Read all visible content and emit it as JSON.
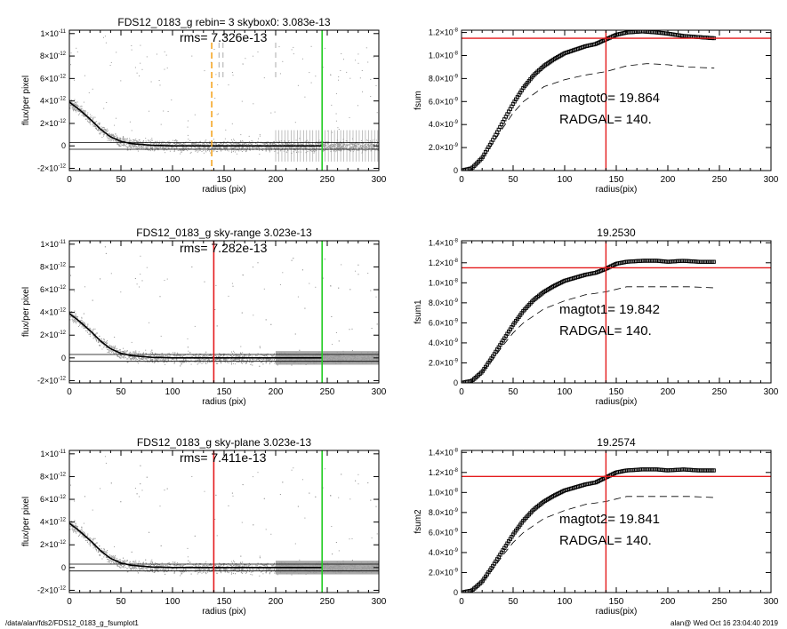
{
  "footer": {
    "path": "/data/alan/fds2/FDS12_0183_g_fsumplot1",
    "stamp": "alan@  Wed Oct 16 23:04:40 2019"
  },
  "colors": {
    "axis": "#000000",
    "points": "#9a9a9a",
    "red": "#e41a1c",
    "green": "#22cc22",
    "orange": "#f5a623"
  },
  "chart_data": [
    {
      "id": "profile-1",
      "type": "scatter",
      "title": "FDS12_0183_g rebin= 3    skybox0:  3.083e-13",
      "rms_label": "rms= 7.326e-13",
      "xlabel": "radius (pix)",
      "ylabel": "flux/per pixel",
      "xlim": [
        0,
        300
      ],
      "ylim": [
        -2.2e-12,
        1.03e-11
      ],
      "xticks": [
        "0",
        "50",
        "100",
        "150",
        "200",
        "250",
        "300"
      ],
      "yticks": [
        {
          "v": 1e-11,
          "m": "1×10",
          "e": "-11"
        },
        {
          "v": 8e-12,
          "m": "8×10",
          "e": "-12"
        },
        {
          "v": 6e-12,
          "m": "6×10",
          "e": "-12"
        },
        {
          "v": 4e-12,
          "m": "4×10",
          "e": "-12"
        },
        {
          "v": 2e-12,
          "m": "2×10",
          "e": "-12"
        },
        {
          "v": 0,
          "m": "0",
          "e": ""
        },
        {
          "v": -2e-12,
          "m": "-2×10",
          "e": "-12"
        }
      ],
      "profile": [
        [
          0,
          3.9e-12
        ],
        [
          10,
          3.2e-12
        ],
        [
          20,
          2.4e-12
        ],
        [
          30,
          1.5e-12
        ],
        [
          40,
          8e-13
        ],
        [
          50,
          4e-13
        ],
        [
          60,
          2e-13
        ],
        [
          80,
          5e-14
        ],
        [
          100,
          0
        ],
        [
          150,
          0
        ],
        [
          200,
          0
        ],
        [
          245,
          0
        ]
      ],
      "sky_lines": [
        3e-13,
        -3e-13
      ],
      "green_x": 245,
      "red_x": null,
      "orange_dashed_x": [
        138
      ],
      "gray_dashed_x": [
        145,
        149,
        200
      ],
      "noise_style": "open"
    },
    {
      "id": "cog-1",
      "type": "line",
      "title": "",
      "xlabel": "radius(pix)",
      "ylabel": "fsum",
      "xlim": [
        0,
        300
      ],
      "ylim": [
        0,
        1.22e-08
      ],
      "xticks": [
        "0",
        "50",
        "100",
        "150",
        "200",
        "250",
        "300"
      ],
      "yticks": [
        {
          "v": 1.2e-08,
          "m": "1.2×10",
          "e": "-8"
        },
        {
          "v": 1e-08,
          "m": "1.0×10",
          "e": "-8"
        },
        {
          "v": 8e-09,
          "m": "8.0×10",
          "e": "-9"
        },
        {
          "v": 6e-09,
          "m": "6.0×10",
          "e": "-9"
        },
        {
          "v": 4e-09,
          "m": "4.0×10",
          "e": "-9"
        },
        {
          "v": 2e-09,
          "m": "2.0×10",
          "e": "-9"
        },
        {
          "v": 0,
          "m": "0",
          "e": ""
        }
      ],
      "cog": [
        [
          0,
          0
        ],
        [
          10,
          2e-10
        ],
        [
          20,
          1.1e-09
        ],
        [
          30,
          2.6e-09
        ],
        [
          40,
          4.2e-09
        ],
        [
          50,
          5.8e-09
        ],
        [
          60,
          7.2e-09
        ],
        [
          70,
          8.3e-09
        ],
        [
          80,
          9.1e-09
        ],
        [
          90,
          9.7e-09
        ],
        [
          100,
          1.02e-08
        ],
        [
          110,
          1.05e-08
        ],
        [
          120,
          1.08e-08
        ],
        [
          130,
          1.1e-08
        ],
        [
          140,
          1.14e-08
        ],
        [
          150,
          1.18e-08
        ],
        [
          160,
          1.2e-08
        ],
        [
          175,
          1.21e-08
        ],
        [
          190,
          1.2e-08
        ],
        [
          200,
          1.19e-08
        ],
        [
          215,
          1.17e-08
        ],
        [
          230,
          1.16e-08
        ],
        [
          245,
          1.15e-08
        ]
      ],
      "dashed": [
        [
          20,
          1.1e-09
        ],
        [
          30,
          2.3e-09
        ],
        [
          40,
          3.7e-09
        ],
        [
          50,
          5e-09
        ],
        [
          60,
          6e-09
        ],
        [
          80,
          7.3e-09
        ],
        [
          100,
          7.9e-09
        ],
        [
          120,
          8.3e-09
        ],
        [
          140,
          8.6e-09
        ],
        [
          160,
          9.1e-09
        ],
        [
          180,
          9.3e-09
        ],
        [
          200,
          9.2e-09
        ],
        [
          220,
          9e-09
        ],
        [
          245,
          8.9e-09
        ]
      ],
      "hline": 1.15e-08,
      "vline": 140,
      "annot1": "magtot0=  19.864",
      "annot2": "RADGAL=    140."
    },
    {
      "id": "profile-2",
      "type": "scatter",
      "title": "FDS12_0183_g sky-range  3.023e-13",
      "rms_label": "rms= 7.282e-13",
      "xlabel": "radius (pix)",
      "ylabel": "flux/per pixel",
      "xlim": [
        0,
        300
      ],
      "ylim": [
        -2.2e-12,
        1.03e-11
      ],
      "xticks": [
        "0",
        "50",
        "100",
        "150",
        "200",
        "250",
        "300"
      ],
      "yticks": [
        {
          "v": 1e-11,
          "m": "1×10",
          "e": "-11"
        },
        {
          "v": 8e-12,
          "m": "8×10",
          "e": "-12"
        },
        {
          "v": 6e-12,
          "m": "6×10",
          "e": "-12"
        },
        {
          "v": 4e-12,
          "m": "4×10",
          "e": "-12"
        },
        {
          "v": 2e-12,
          "m": "2×10",
          "e": "-12"
        },
        {
          "v": 0,
          "m": "0",
          "e": ""
        },
        {
          "v": -2e-12,
          "m": "-2×10",
          "e": "-12"
        }
      ],
      "profile": [
        [
          0,
          3.9e-12
        ],
        [
          10,
          3.2e-12
        ],
        [
          20,
          2.4e-12
        ],
        [
          30,
          1.5e-12
        ],
        [
          40,
          8e-13
        ],
        [
          50,
          4e-13
        ],
        [
          60,
          2e-13
        ],
        [
          80,
          5e-14
        ],
        [
          100,
          0
        ],
        [
          150,
          0
        ],
        [
          200,
          0
        ],
        [
          245,
          0
        ]
      ],
      "sky_lines": [
        3e-13,
        -3e-13
      ],
      "green_x": 245,
      "red_x": 140,
      "orange_dashed_x": [],
      "gray_dashed_x": [],
      "noise_style": "band"
    },
    {
      "id": "cog-2",
      "type": "line",
      "title": "19.2530",
      "xlabel": "radius(pix)",
      "ylabel": "fsum1",
      "xlim": [
        0,
        300
      ],
      "ylim": [
        0,
        1.42e-08
      ],
      "xticks": [
        "0",
        "50",
        "100",
        "150",
        "200",
        "250",
        "300"
      ],
      "yticks": [
        {
          "v": 1.4e-08,
          "m": "1.4×10",
          "e": "-8"
        },
        {
          "v": 1.2e-08,
          "m": "1.2×10",
          "e": "-8"
        },
        {
          "v": 1e-08,
          "m": "1.0×10",
          "e": "-8"
        },
        {
          "v": 8e-09,
          "m": "8.0×10",
          "e": "-9"
        },
        {
          "v": 6e-09,
          "m": "6.0×10",
          "e": "-9"
        },
        {
          "v": 4e-09,
          "m": "4.0×10",
          "e": "-9"
        },
        {
          "v": 2e-09,
          "m": "2.0×10",
          "e": "-9"
        },
        {
          "v": 0,
          "m": "0",
          "e": ""
        }
      ],
      "cog": [
        [
          0,
          0
        ],
        [
          10,
          2e-10
        ],
        [
          20,
          1.1e-09
        ],
        [
          30,
          2.6e-09
        ],
        [
          40,
          4.2e-09
        ],
        [
          50,
          5.8e-09
        ],
        [
          60,
          7.2e-09
        ],
        [
          70,
          8.3e-09
        ],
        [
          80,
          9.1e-09
        ],
        [
          90,
          9.7e-09
        ],
        [
          100,
          1.02e-08
        ],
        [
          110,
          1.05e-08
        ],
        [
          120,
          1.08e-08
        ],
        [
          130,
          1.1e-08
        ],
        [
          140,
          1.14e-08
        ],
        [
          150,
          1.19e-08
        ],
        [
          160,
          1.21e-08
        ],
        [
          175,
          1.22e-08
        ],
        [
          190,
          1.22e-08
        ],
        [
          200,
          1.21e-08
        ],
        [
          215,
          1.22e-08
        ],
        [
          230,
          1.21e-08
        ],
        [
          245,
          1.21e-08
        ]
      ],
      "dashed": [
        [
          20,
          1.1e-09
        ],
        [
          30,
          2.3e-09
        ],
        [
          40,
          3.7e-09
        ],
        [
          50,
          5e-09
        ],
        [
          60,
          6e-09
        ],
        [
          80,
          7.4e-09
        ],
        [
          100,
          8.2e-09
        ],
        [
          120,
          8.8e-09
        ],
        [
          140,
          9.1e-09
        ],
        [
          160,
          9.6e-09
        ],
        [
          180,
          9.6e-09
        ],
        [
          200,
          9.6e-09
        ],
        [
          220,
          9.6e-09
        ],
        [
          245,
          9.5e-09
        ]
      ],
      "hline": 1.15e-08,
      "vline": 140,
      "annot1": "magtot1=  19.842",
      "annot2": "RADGAL=    140."
    },
    {
      "id": "profile-3",
      "type": "scatter",
      "title": "FDS12_0183_g sky-plane  3.023e-13",
      "rms_label": "rms= 7.411e-13",
      "xlabel": "radius (pix)",
      "ylabel": "flux/per pixel",
      "xlim": [
        0,
        300
      ],
      "ylim": [
        -2.2e-12,
        1.03e-11
      ],
      "xticks": [
        "0",
        "50",
        "100",
        "150",
        "200",
        "250",
        "300"
      ],
      "yticks": [
        {
          "v": 1e-11,
          "m": "1×10",
          "e": "-11"
        },
        {
          "v": 8e-12,
          "m": "8×10",
          "e": "-12"
        },
        {
          "v": 6e-12,
          "m": "6×10",
          "e": "-12"
        },
        {
          "v": 4e-12,
          "m": "4×10",
          "e": "-12"
        },
        {
          "v": 2e-12,
          "m": "2×10",
          "e": "-12"
        },
        {
          "v": 0,
          "m": "0",
          "e": ""
        },
        {
          "v": -2e-12,
          "m": "-2×10",
          "e": "-12"
        }
      ],
      "profile": [
        [
          0,
          3.9e-12
        ],
        [
          10,
          3.2e-12
        ],
        [
          20,
          2.4e-12
        ],
        [
          30,
          1.5e-12
        ],
        [
          40,
          8e-13
        ],
        [
          50,
          4e-13
        ],
        [
          60,
          2e-13
        ],
        [
          80,
          5e-14
        ],
        [
          100,
          0
        ],
        [
          150,
          0
        ],
        [
          200,
          0
        ],
        [
          245,
          0
        ]
      ],
      "sky_lines": [
        3e-13,
        -3e-13
      ],
      "green_x": 245,
      "red_x": 140,
      "orange_dashed_x": [],
      "gray_dashed_x": [],
      "noise_style": "band"
    },
    {
      "id": "cog-3",
      "type": "line",
      "title": "19.2574",
      "xlabel": "radius(pix)",
      "ylabel": "fsum2",
      "xlim": [
        0,
        300
      ],
      "ylim": [
        0,
        1.42e-08
      ],
      "xticks": [
        "0",
        "50",
        "100",
        "150",
        "200",
        "250",
        "300"
      ],
      "yticks": [
        {
          "v": 1.4e-08,
          "m": "1.4×10",
          "e": "-8"
        },
        {
          "v": 1.2e-08,
          "m": "1.2×10",
          "e": "-8"
        },
        {
          "v": 1e-08,
          "m": "1.0×10",
          "e": "-8"
        },
        {
          "v": 8e-09,
          "m": "8.0×10",
          "e": "-9"
        },
        {
          "v": 6e-09,
          "m": "6.0×10",
          "e": "-9"
        },
        {
          "v": 4e-09,
          "m": "4.0×10",
          "e": "-9"
        },
        {
          "v": 2e-09,
          "m": "2.0×10",
          "e": "-9"
        },
        {
          "v": 0,
          "m": "0",
          "e": ""
        }
      ],
      "cog": [
        [
          0,
          0
        ],
        [
          10,
          2e-10
        ],
        [
          20,
          1.1e-09
        ],
        [
          30,
          2.6e-09
        ],
        [
          40,
          4.2e-09
        ],
        [
          50,
          5.8e-09
        ],
        [
          60,
          7.2e-09
        ],
        [
          70,
          8.3e-09
        ],
        [
          80,
          9.1e-09
        ],
        [
          90,
          9.7e-09
        ],
        [
          100,
          1.02e-08
        ],
        [
          110,
          1.05e-08
        ],
        [
          120,
          1.08e-08
        ],
        [
          130,
          1.1e-08
        ],
        [
          140,
          1.15e-08
        ],
        [
          150,
          1.2e-08
        ],
        [
          160,
          1.22e-08
        ],
        [
          175,
          1.23e-08
        ],
        [
          190,
          1.23e-08
        ],
        [
          200,
          1.22e-08
        ],
        [
          215,
          1.23e-08
        ],
        [
          230,
          1.22e-08
        ],
        [
          245,
          1.22e-08
        ]
      ],
      "dashed": [
        [
          20,
          1.1e-09
        ],
        [
          30,
          2.3e-09
        ],
        [
          40,
          3.7e-09
        ],
        [
          50,
          5e-09
        ],
        [
          60,
          6e-09
        ],
        [
          80,
          7.4e-09
        ],
        [
          100,
          8.2e-09
        ],
        [
          120,
          8.8e-09
        ],
        [
          140,
          9.1e-09
        ],
        [
          160,
          9.6e-09
        ],
        [
          180,
          9.6e-09
        ],
        [
          200,
          9.6e-09
        ],
        [
          220,
          9.6e-09
        ],
        [
          245,
          9.5e-09
        ]
      ],
      "hline": 1.16e-08,
      "vline": 140,
      "annot1": "magtot2=  19.841",
      "annot2": "RADGAL=    140."
    }
  ]
}
